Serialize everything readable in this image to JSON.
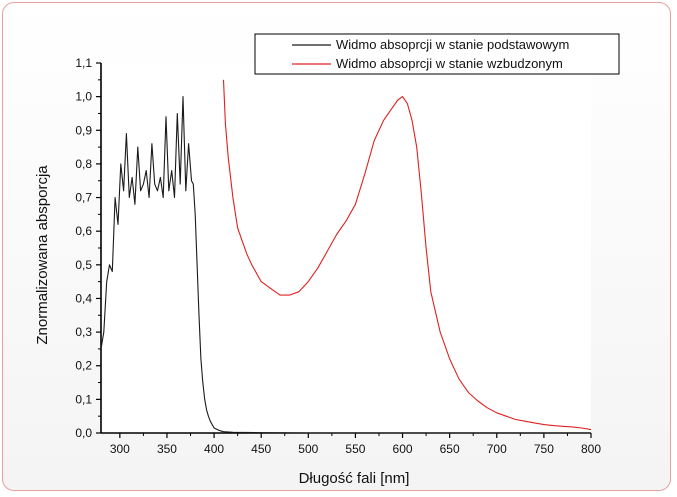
{
  "chart_data": {
    "type": "line",
    "xlabel": "Długość fali [nm]",
    "ylabel": "Znormalizowana absporcja",
    "xlim": [
      280,
      800
    ],
    "ylim": [
      0,
      1.1
    ],
    "x_ticks": [
      "300",
      "350",
      "400",
      "450",
      "500",
      "550",
      "600",
      "650",
      "700",
      "750",
      "800"
    ],
    "y_ticks": [
      "0,0",
      "0,1",
      "0,2",
      "0,3",
      "0,4",
      "0,5",
      "0,6",
      "0,7",
      "0,8",
      "0,9",
      "1,0",
      "1,1"
    ],
    "grid": false,
    "legend_position": "top-right",
    "series": [
      {
        "name": "Widmo absoprcji w stanie podstawowym",
        "color": "#1a1a1a",
        "x": [
          280,
          283,
          286,
          289,
          292,
          295,
          298,
          301,
          304,
          307,
          310,
          313,
          316,
          319,
          322,
          325,
          328,
          331,
          334,
          337,
          340,
          343,
          346,
          349,
          352,
          355,
          358,
          361,
          364,
          367,
          370,
          373,
          376,
          378,
          380,
          382,
          384,
          386,
          388,
          390,
          392,
          394,
          396,
          398,
          400,
          405,
          410,
          420,
          450,
          500,
          600,
          700,
          800
        ],
        "y": [
          0.25,
          0.3,
          0.45,
          0.5,
          0.48,
          0.7,
          0.62,
          0.8,
          0.72,
          0.89,
          0.7,
          0.76,
          0.68,
          0.85,
          0.72,
          0.74,
          0.78,
          0.7,
          0.86,
          0.74,
          0.72,
          0.76,
          0.7,
          0.94,
          0.72,
          0.78,
          0.7,
          0.95,
          0.74,
          1.0,
          0.72,
          0.86,
          0.75,
          0.74,
          0.65,
          0.5,
          0.35,
          0.22,
          0.15,
          0.1,
          0.07,
          0.05,
          0.035,
          0.025,
          0.015,
          0.008,
          0.004,
          0.002,
          0.001,
          0.0,
          0.0,
          0.0,
          0.0
        ]
      },
      {
        "name": "Widmo absoprcji w stanie wzbudzonym",
        "color": "#e02020",
        "x": [
          410,
          412,
          415,
          420,
          425,
          430,
          435,
          440,
          450,
          460,
          470,
          480,
          490,
          500,
          510,
          520,
          530,
          540,
          550,
          560,
          570,
          580,
          590,
          595,
          600,
          605,
          610,
          615,
          620,
          625,
          630,
          640,
          650,
          660,
          670,
          680,
          690,
          700,
          710,
          720,
          730,
          740,
          750,
          760,
          770,
          780,
          790,
          800
        ],
        "y": [
          1.05,
          0.92,
          0.82,
          0.7,
          0.61,
          0.57,
          0.53,
          0.5,
          0.45,
          0.43,
          0.41,
          0.41,
          0.42,
          0.45,
          0.49,
          0.54,
          0.59,
          0.63,
          0.68,
          0.77,
          0.87,
          0.93,
          0.97,
          0.99,
          1.0,
          0.98,
          0.93,
          0.85,
          0.71,
          0.55,
          0.42,
          0.3,
          0.22,
          0.16,
          0.12,
          0.095,
          0.075,
          0.06,
          0.05,
          0.04,
          0.035,
          0.03,
          0.025,
          0.022,
          0.02,
          0.018,
          0.015,
          0.01
        ]
      }
    ]
  }
}
